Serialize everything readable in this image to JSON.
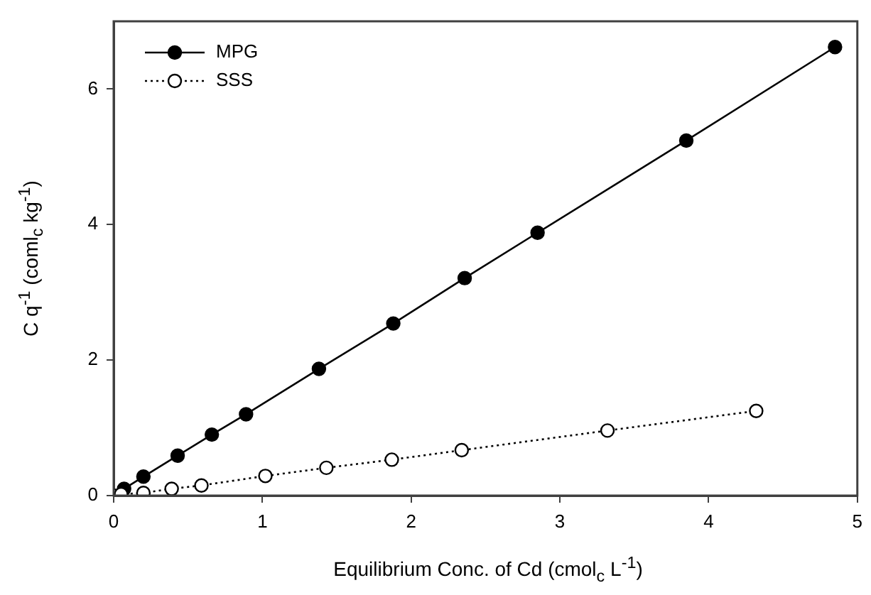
{
  "chart_data": {
    "type": "line",
    "xlabel": "Equilibrium Conc. of Cd (cmol$_{c}$ L$^{-1}$)",
    "ylabel": "C q$^{-1}$ (coml$_{c}$ kg$^{-1}$)",
    "series": [
      {
        "name": "MPG",
        "color": "#000000",
        "marker": "circle",
        "line_style": "solid",
        "x": [
          0.07,
          0.2,
          0.43,
          0.66,
          0.89,
          1.38,
          1.88,
          2.36,
          2.85,
          3.85,
          4.85
        ],
        "values": [
          0.1,
          0.28,
          0.59,
          0.9,
          1.2,
          1.87,
          2.54,
          3.21,
          3.88,
          5.24,
          6.62
        ]
      },
      {
        "name": "SSS",
        "color": "#000000",
        "marker": "circle",
        "line_style": "dotted",
        "x": [
          0.0,
          0.05,
          0.2,
          0.39,
          0.59,
          1.02,
          1.43,
          1.87,
          2.34,
          3.32,
          4.32
        ],
        "values": [
          0.0,
          0.02,
          0.04,
          0.1,
          0.15,
          0.29,
          0.41,
          0.53,
          0.67,
          0.96,
          1.25
        ]
      }
    ],
    "xlim": [
      0,
      5
    ],
    "xticks": [
      0,
      1,
      2,
      3,
      4,
      5
    ],
    "ylim": [
      0,
      7
    ],
    "yticks": [
      0,
      2,
      4,
      6
    ],
    "grid": false,
    "legend": "top left"
  }
}
